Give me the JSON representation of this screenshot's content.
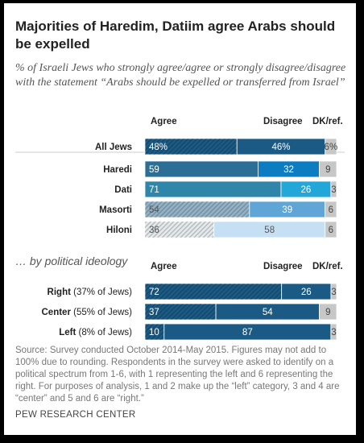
{
  "title": "Majorities of Haredim, Datiim agree Arabs should be expelled",
  "subtitle": "% of Israeli Jews who strongly agree/agree or strongly disagree/disagree with the statement “Arabs should be expelled or transferred from Israel”",
  "source": "Source: Survey conducted October 2014-May 2015. Figures may not add to 100% due to rounding. Respondents in the survey were asked to identify on a political spectrum from 1-6, with 1 representing the left and 6 representing the right. For purposes of analysis, 1 and 2 make up the “left” category, 3 and 4 are “center” and 5 and 6 are “right.”",
  "brand": "PEW RESEARCH CENTER",
  "chart_data": [
    {
      "type": "bar",
      "orientation": "horizontal",
      "stacked": true,
      "title": "",
      "columns": [
        "Agree",
        "Disagree",
        "DK/ref."
      ],
      "rows": [
        {
          "label": "All Jews",
          "values": [
            48,
            46,
            6
          ],
          "pct": true,
          "colors": [
            "#1b5a84",
            "#1b5a84",
            "#c7c7c7"
          ],
          "hatch": [
            true,
            false,
            false
          ]
        },
        {
          "label": "Haredi",
          "values": [
            59,
            32,
            9
          ],
          "pct": false,
          "colors": [
            "#2b6f97",
            "#0d7dc2",
            "#c7c7c7"
          ],
          "hatch": [
            false,
            false,
            false
          ]
        },
        {
          "label": "Dati",
          "values": [
            71,
            26,
            3
          ],
          "pct": false,
          "colors": [
            "#2f86a8",
            "#23a7d9",
            "#c7c7c7"
          ],
          "hatch": [
            false,
            false,
            false
          ]
        },
        {
          "label": "Masorti",
          "values": [
            54,
            39,
            6
          ],
          "pct": false,
          "colors": [
            "#93b2c6",
            "#5fa6d6",
            "#c7c7c7"
          ],
          "hatch": [
            true,
            false,
            false
          ]
        },
        {
          "label": "Hiloni",
          "values": [
            36,
            58,
            6
          ],
          "pct": false,
          "colors": [
            "#e4e9ec",
            "#c5e0f2",
            "#c7c7c7"
          ],
          "hatch": [
            true,
            false,
            false
          ]
        }
      ]
    },
    {
      "type": "bar",
      "orientation": "horizontal",
      "stacked": true,
      "title": "… by political ideology",
      "columns": [
        "Agree",
        "Disagree",
        "DK/ref."
      ],
      "rows": [
        {
          "label": "Right",
          "sub": "(37% of Jews)",
          "values": [
            72,
            26,
            3
          ],
          "pct": false,
          "colors": [
            "#1b5a84",
            "#1b5a84",
            "#c7c7c7"
          ],
          "hatch": [
            true,
            false,
            false
          ]
        },
        {
          "label": "Center",
          "sub": "(55% of Jews)",
          "values": [
            37,
            54,
            9
          ],
          "pct": false,
          "colors": [
            "#1b5a84",
            "#1b5a84",
            "#c7c7c7"
          ],
          "hatch": [
            true,
            false,
            false
          ]
        },
        {
          "label": "Left",
          "sub": "(8% of Jews)",
          "values": [
            10,
            87,
            3
          ],
          "pct": false,
          "colors": [
            "#1b5a84",
            "#1b5a84",
            "#c7c7c7"
          ],
          "hatch": [
            true,
            false,
            false
          ]
        }
      ]
    }
  ]
}
